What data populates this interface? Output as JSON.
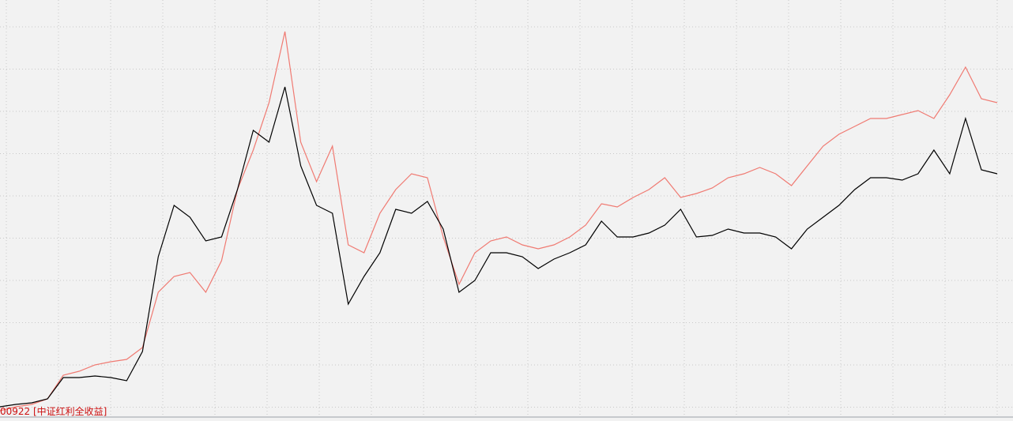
{
  "chart_data": {
    "type": "line",
    "ylim": [
      0,
      530
    ],
    "grid": true,
    "series": [
      {
        "name": "00922 [中证红利全收益]",
        "color": "#f07a72",
        "values": [
          10,
          15,
          18,
          25,
          55,
          60,
          68,
          72,
          75,
          90,
          160,
          180,
          185,
          160,
          200,
          290,
          340,
          400,
          490,
          350,
          300,
          345,
          220,
          210,
          260,
          290,
          310,
          305,
          230,
          170,
          210,
          225,
          230,
          220,
          215,
          220,
          230,
          245,
          272,
          268,
          280,
          290,
          305,
          280,
          285,
          292,
          305,
          310,
          318,
          310,
          295,
          320,
          345,
          360,
          370,
          380,
          380,
          385,
          390,
          380,
          410,
          445,
          405,
          400
        ]
      },
      {
        "color": "#000000",
        "values": [
          15,
          18,
          20,
          25,
          52,
          52,
          54,
          52,
          48,
          85,
          205,
          270,
          255,
          225,
          230,
          290,
          365,
          350,
          420,
          320,
          270,
          260,
          145,
          180,
          210,
          265,
          260,
          275,
          240,
          160,
          175,
          210,
          210,
          205,
          190,
          202,
          210,
          220,
          250,
          230,
          230,
          235,
          245,
          265,
          230,
          232,
          240,
          235,
          235,
          230,
          215,
          240,
          255,
          270,
          290,
          305,
          305,
          302,
          310,
          340,
          310,
          380,
          315,
          310
        ]
      }
    ]
  }
}
